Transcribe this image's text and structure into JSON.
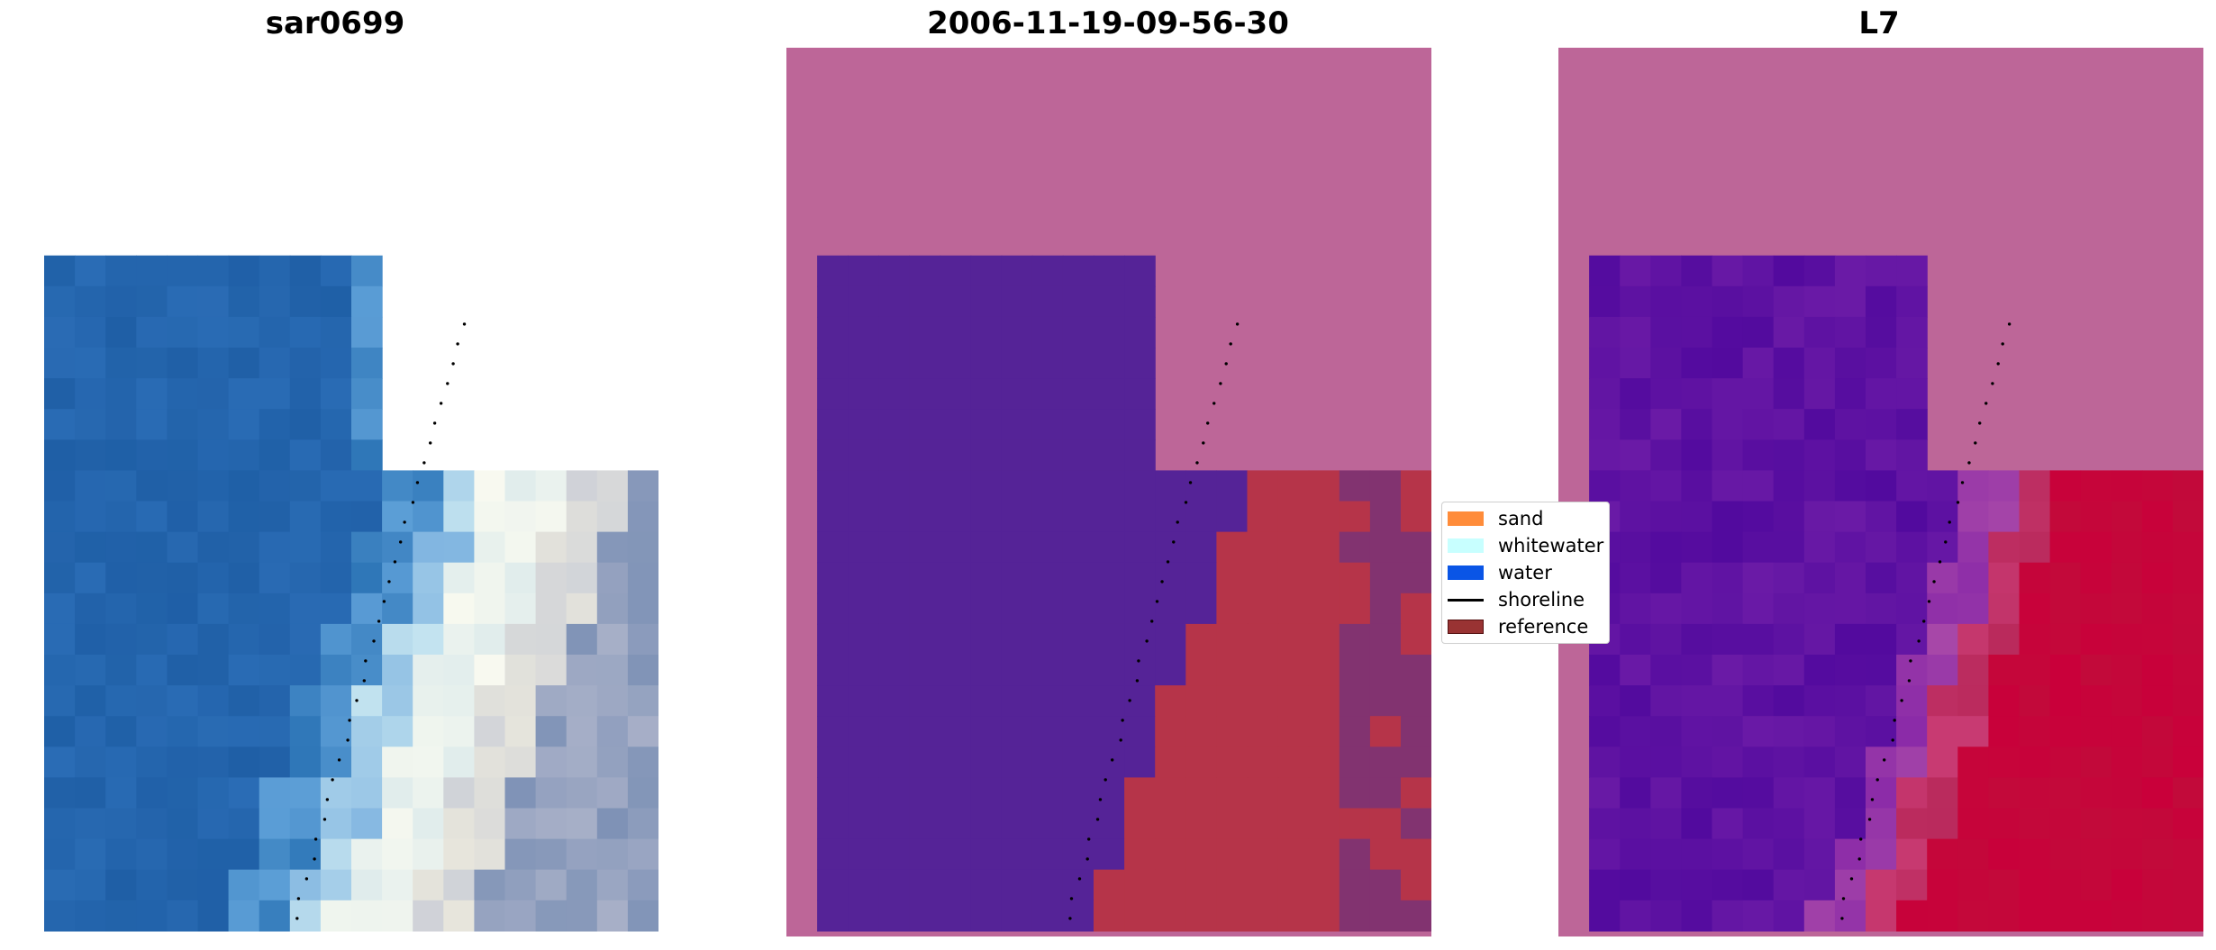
{
  "panels": [
    {
      "title": "sar0699"
    },
    {
      "title": "2006-11-19-09-56-30"
    },
    {
      "title": "L7"
    }
  ],
  "legend": {
    "items": [
      {
        "label": "sand",
        "color": "#ff8c3a"
      },
      {
        "label": "whitewater",
        "color": "#c8ffff"
      },
      {
        "label": "water",
        "color": "#0a55e6"
      },
      {
        "label": "shoreline",
        "color": "#000000"
      },
      {
        "label": "reference",
        "color": "#993333"
      }
    ]
  },
  "colors": {
    "nodata": "#bd6698",
    "class_water": "#552397",
    "class_sand": "#b63449",
    "class_mixed": "#823370",
    "index_low": "#5a0aa0",
    "index_high": "#c8002e"
  }
}
